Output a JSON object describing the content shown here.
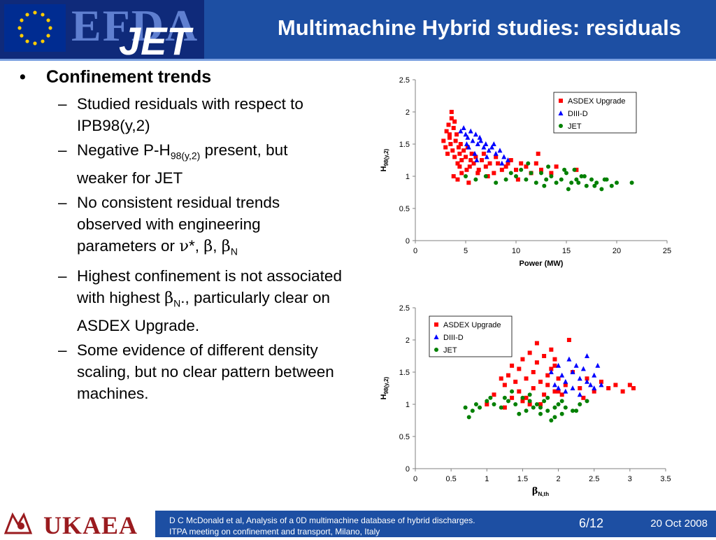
{
  "header": {
    "title": "Multimachine Hybrid studies: residuals",
    "logo_text_1": "EFDA",
    "logo_text_2": "JET",
    "colors": {
      "header_bg": "#1d4fa3",
      "accent": "#7aa0e0"
    }
  },
  "bullets": {
    "main": "Confinement trends",
    "items": [
      {
        "text": "Studied residuals with respect to IPB98(y,2)"
      },
      {
        "pre": "Negative P-H",
        "sub": "98(y,2)",
        "post": " present, but weaker for JET"
      },
      {
        "pre": "No consistent residual trends observed with engineering parameters or ",
        "nu": "ν",
        "sep1": "*, ",
        "beta1": "β",
        "sep2": ", ",
        "beta2": "β",
        "beta2_sub": "N"
      },
      {
        "pre": "Highest confinement is not associated with highest ",
        "beta": "β",
        "beta_sub": "N",
        "post": "., particularly clear on ASDEX Upgrade."
      },
      {
        "text": "Some evidence of different density scaling, but no clear pattern between machines."
      }
    ]
  },
  "chart_data": [
    {
      "type": "scatter",
      "xlabel": "Power (MW)",
      "ylabel_main": "H",
      "ylabel_sub": "98(y,2)",
      "xlim": [
        0,
        25
      ],
      "ylim": [
        0,
        2.5
      ],
      "xticks": [
        0,
        5,
        10,
        15,
        20,
        25
      ],
      "yticks": [
        0,
        0.5,
        1,
        1.5,
        2,
        2.5
      ],
      "legend_position": "top-right",
      "grid": false,
      "series": [
        {
          "name": "ASDEX Upgrade",
          "marker": "square",
          "color": "#ff0000",
          "x": [
            2.8,
            3.0,
            3.1,
            3.2,
            3.3,
            3.4,
            3.5,
            3.6,
            3.7,
            3.8,
            3.9,
            4.0,
            4.1,
            4.2,
            4.3,
            4.4,
            4.5,
            4.6,
            4.8,
            5.0,
            5.2,
            5.4,
            5.6,
            5.8,
            6.0,
            6.3,
            6.6,
            7.0,
            7.4,
            7.8,
            8.2,
            8.6,
            9.0,
            9.5,
            10.0,
            10.5,
            11.0,
            11.5,
            12.0,
            12.5,
            13.5,
            14.0,
            3.6,
            3.8,
            4.2,
            4.6,
            5.1,
            5.5,
            6.2,
            7.2,
            8.0,
            9.2,
            3.4,
            3.9,
            4.4,
            5.3,
            6.8,
            12.2,
            16.0,
            10.2
          ],
          "y": [
            1.55,
            1.45,
            1.7,
            1.35,
            1.8,
            1.6,
            1.5,
            2.0,
            1.4,
            1.75,
            1.3,
            1.55,
            1.65,
            1.2,
            1.45,
            1.35,
            1.5,
            1.25,
            1.4,
            1.3,
            1.45,
            1.15,
            1.35,
            1.2,
            1.3,
            1.1,
            1.25,
            1.15,
            1.2,
            1.05,
            1.2,
            1.1,
            1.15,
            1.25,
            1.1,
            1.2,
            1.15,
            1.05,
            1.2,
            1.1,
            1.05,
            1.15,
            1.9,
            1.0,
            0.95,
            1.05,
            1.1,
            1.25,
            1.05,
            1.0,
            1.3,
            1.2,
            1.65,
            1.85,
            1.15,
            0.9,
            1.35,
            1.35,
            1.1,
            0.95
          ]
        },
        {
          "name": "DIII-D",
          "marker": "triangle",
          "color": "#0000ff",
          "x": [
            4.5,
            4.8,
            5.0,
            5.2,
            5.5,
            5.7,
            6.0,
            6.2,
            6.5,
            6.8,
            7.0,
            7.3,
            7.6,
            8.0,
            8.4,
            8.8,
            9.2,
            5.3,
            5.9,
            6.4,
            7.1,
            7.8,
            8.6,
            5.1,
            6.1
          ],
          "y": [
            1.7,
            1.75,
            1.65,
            1.6,
            1.7,
            1.55,
            1.65,
            1.5,
            1.55,
            1.45,
            1.5,
            1.4,
            1.45,
            1.35,
            1.4,
            1.3,
            1.25,
            1.45,
            1.35,
            1.6,
            1.3,
            1.5,
            1.2,
            1.5,
            1.25
          ]
        },
        {
          "name": "JET",
          "marker": "circle",
          "color": "#008000",
          "x": [
            5.0,
            6.0,
            7.0,
            8.0,
            9.0,
            10.0,
            11.0,
            12.0,
            12.5,
            13.0,
            13.5,
            14.0,
            14.5,
            15.0,
            15.5,
            16.0,
            16.5,
            17.0,
            17.5,
            18.0,
            18.5,
            19.0,
            19.5,
            20.0,
            21.5,
            10.5,
            11.5,
            13.2,
            14.8,
            15.8,
            16.8,
            17.8,
            18.8,
            12.8,
            15.2,
            16.2,
            9.5,
            11.2
          ],
          "y": [
            1.0,
            0.95,
            1.0,
            0.9,
            0.95,
            1.0,
            0.95,
            0.9,
            1.05,
            0.95,
            1.0,
            0.9,
            0.95,
            1.05,
            0.9,
            0.95,
            1.0,
            0.85,
            0.95,
            0.9,
            0.8,
            0.95,
            0.85,
            0.9,
            0.9,
            1.1,
            1.05,
            1.15,
            1.1,
            1.1,
            1.0,
            0.85,
            0.95,
            0.85,
            0.8,
            0.9,
            1.05,
            1.2
          ]
        }
      ]
    },
    {
      "type": "scatter",
      "xlabel_main": "β",
      "xlabel_sub": "N,th",
      "ylabel_main": "H",
      "ylabel_sub": "98(y,2)",
      "xlim": [
        0,
        3.5
      ],
      "ylim": [
        0,
        2.5
      ],
      "xticks": [
        0,
        0.5,
        1,
        1.5,
        2,
        2.5,
        3,
        3.5
      ],
      "yticks": [
        0,
        0.5,
        1,
        1.5,
        2,
        2.5
      ],
      "legend_position": "top-left",
      "grid": false,
      "series": [
        {
          "name": "ASDEX Upgrade",
          "marker": "square",
          "color": "#ff0000",
          "x": [
            1.0,
            1.1,
            1.2,
            1.25,
            1.3,
            1.35,
            1.4,
            1.45,
            1.5,
            1.55,
            1.6,
            1.65,
            1.7,
            1.75,
            1.8,
            1.85,
            1.9,
            1.95,
            2.0,
            2.1,
            2.2,
            2.3,
            2.4,
            2.5,
            2.6,
            2.7,
            2.8,
            2.9,
            3.0,
            3.05,
            1.45,
            1.55,
            1.65,
            1.75,
            1.85,
            1.95,
            2.05,
            1.5,
            1.7,
            1.9,
            2.15,
            2.35,
            1.6,
            1.8,
            1.95,
            1.35,
            1.25,
            2.0
          ],
          "y": [
            1.0,
            1.15,
            1.4,
            1.3,
            1.45,
            1.6,
            1.35,
            1.55,
            1.7,
            1.4,
            1.8,
            1.5,
            1.65,
            1.35,
            1.75,
            1.45,
            1.55,
            1.7,
            1.4,
            1.3,
            1.5,
            1.25,
            1.4,
            1.2,
            1.35,
            1.25,
            1.3,
            1.2,
            1.3,
            1.25,
            1.2,
            1.1,
            1.25,
            1.0,
            1.3,
            1.2,
            1.15,
            1.05,
            1.95,
            1.85,
            2.0,
            1.1,
            1.0,
            1.15,
            1.6,
            1.1,
            0.95,
            1.2
          ]
        },
        {
          "name": "DIII-D",
          "marker": "triangle",
          "color": "#0000ff",
          "x": [
            1.9,
            1.95,
            2.0,
            2.05,
            2.1,
            2.15,
            2.2,
            2.25,
            2.3,
            2.35,
            2.4,
            2.45,
            2.5,
            2.55,
            2.6,
            2.0,
            2.1,
            2.2,
            2.3,
            2.4,
            2.5
          ],
          "y": [
            1.5,
            1.3,
            1.6,
            1.45,
            1.35,
            1.7,
            1.5,
            1.6,
            1.4,
            1.55,
            1.75,
            1.3,
            1.45,
            1.6,
            1.3,
            1.25,
            1.2,
            1.25,
            1.15,
            1.35,
            1.25
          ]
        },
        {
          "name": "JET",
          "marker": "circle",
          "color": "#008000",
          "x": [
            0.7,
            0.8,
            0.85,
            0.9,
            1.0,
            1.1,
            1.2,
            1.3,
            1.4,
            1.5,
            1.55,
            1.6,
            1.65,
            1.7,
            1.75,
            1.8,
            1.85,
            1.9,
            1.95,
            2.0,
            2.05,
            2.1,
            2.2,
            2.3,
            2.4,
            0.75,
            1.25,
            1.45,
            1.6,
            1.75,
            1.85,
            1.95,
            2.05,
            2.25,
            1.05,
            1.35
          ],
          "y": [
            0.95,
            0.9,
            1.0,
            0.95,
            1.05,
            1.0,
            0.95,
            1.05,
            1.0,
            1.1,
            0.9,
            1.05,
            0.95,
            1.0,
            0.85,
            1.05,
            0.9,
            0.75,
            0.95,
            1.0,
            0.85,
            0.95,
            0.9,
            1.0,
            1.05,
            0.8,
            1.1,
            0.85,
            1.15,
            0.95,
            1.1,
            0.8,
            1.05,
            0.9,
            1.1,
            1.2
          ]
        }
      ]
    }
  ],
  "footer": {
    "org": "UKAEA",
    "citation_line1": "D C McDonald et al, Analysis of a 0D multimachine database of hybrid discharges.",
    "citation_line2": "ITPA meeting on confinement and transport, Milano, Italy",
    "page": "6/12",
    "date": "20 Oct 2008"
  }
}
